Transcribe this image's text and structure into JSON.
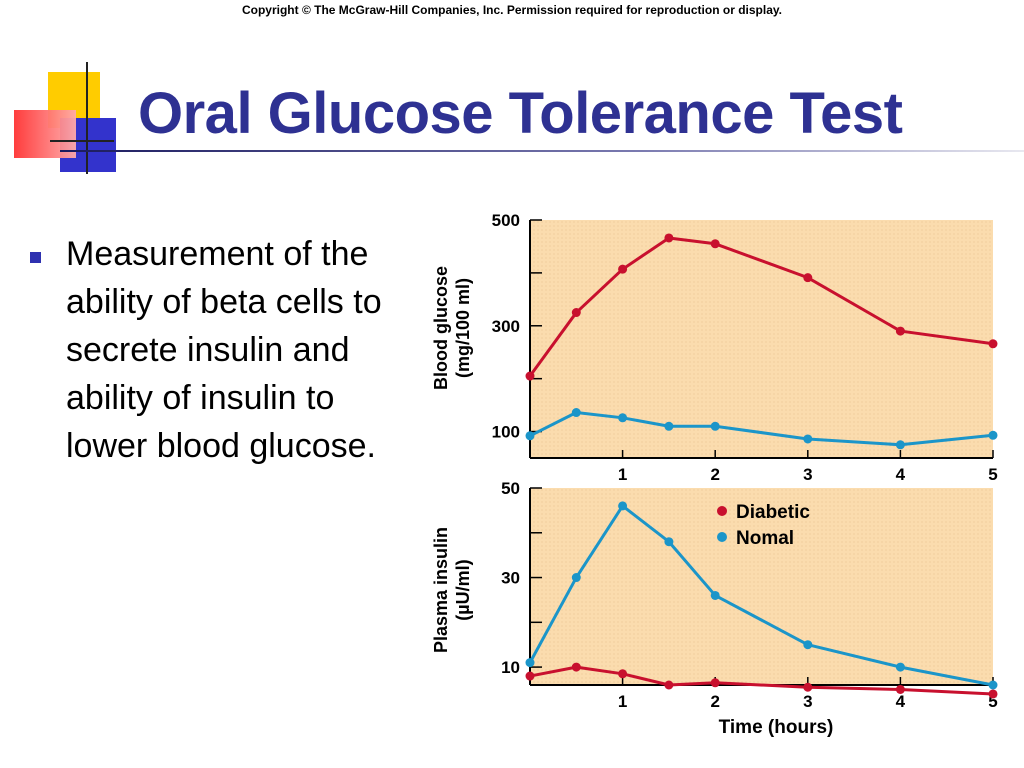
{
  "copyright": "Copyright © The McGraw-Hill Companies, Inc. Permission required for reproduction or display.",
  "title": "Oral Glucose Tolerance Test",
  "bullet_text": "Measurement of the ability of beta cells to secrete insulin and ability of insulin to lower blood glucose.",
  "colors": {
    "title": "#2e3192",
    "plot_background": "#fbdcae",
    "diabetic": "#c8102e",
    "normal": "#1b95c9"
  },
  "chart_data": [
    {
      "type": "line",
      "ylabel": "Blood glucose (mg/100 ml)",
      "xlabel": "",
      "xlim": [
        0,
        5
      ],
      "ylim": [
        50,
        500
      ],
      "xticks": [
        1,
        2,
        3,
        4,
        5
      ],
      "yticks": [
        100,
        300,
        500
      ],
      "grid": false,
      "series": [
        {
          "name": "Diabetic",
          "color": "#c8102e",
          "x": [
            0,
            0.5,
            1,
            1.5,
            2,
            3,
            4,
            5
          ],
          "y": [
            205,
            325,
            407,
            466,
            455,
            391,
            290,
            266
          ]
        },
        {
          "name": "Nomal",
          "color": "#1b95c9",
          "x": [
            0,
            0.5,
            1,
            1.5,
            2,
            3,
            4,
            5
          ],
          "y": [
            92,
            136,
            126,
            110,
            110,
            86,
            75,
            93
          ]
        }
      ]
    },
    {
      "type": "line",
      "ylabel": "Plasma insulin (µU/ml)",
      "xlabel": "Time (hours)",
      "xlim": [
        0,
        5
      ],
      "ylim": [
        6,
        50
      ],
      "xticks": [
        1,
        2,
        3,
        4,
        5
      ],
      "yticks": [
        10,
        30,
        50
      ],
      "grid": false,
      "legend": {
        "position": "top-right",
        "labels": [
          "Diabetic",
          "Nomal"
        ]
      },
      "series": [
        {
          "name": "Diabetic",
          "color": "#c8102e",
          "x": [
            0,
            0.5,
            1,
            1.5,
            2,
            3,
            4,
            5
          ],
          "y": [
            8,
            10,
            8.5,
            6,
            6.5,
            5.5,
            5,
            4
          ]
        },
        {
          "name": "Nomal",
          "color": "#1b95c9",
          "x": [
            0,
            0.5,
            1,
            1.5,
            2,
            3,
            4,
            5
          ],
          "y": [
            11,
            30,
            46,
            38,
            26,
            15,
            10,
            6
          ]
        }
      ]
    }
  ]
}
